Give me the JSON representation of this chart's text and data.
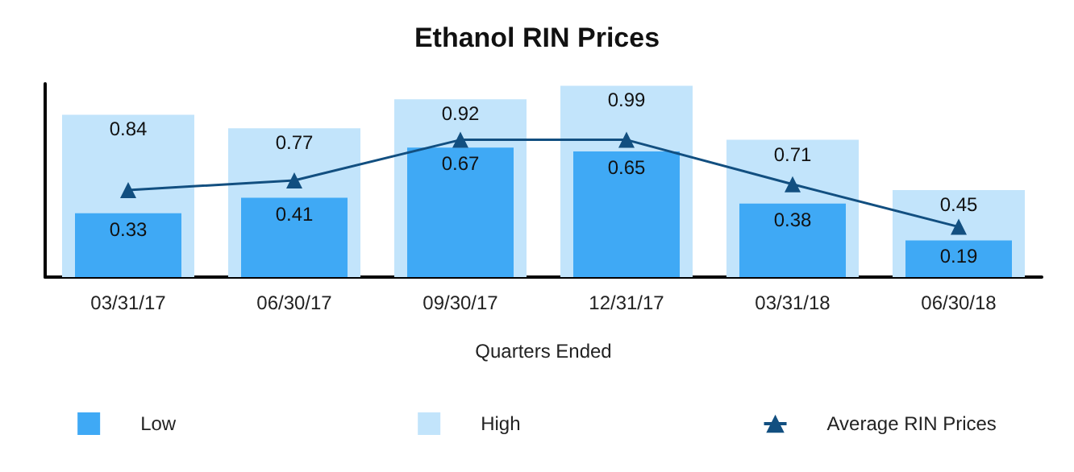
{
  "chart_data": {
    "type": "bar",
    "title": "Ethanol RIN Prices",
    "xlabel": "Quarters Ended",
    "categories": [
      "03/31/17",
      "06/30/17",
      "09/30/17",
      "12/31/17",
      "03/31/18",
      "06/30/18"
    ],
    "series": [
      {
        "name": "Low",
        "color": "#3fa9f5",
        "values": [
          0.33,
          0.41,
          0.67,
          0.65,
          0.38,
          0.19
        ],
        "value_labels": [
          "0.33",
          "0.41",
          "0.67",
          "0.65",
          "0.38",
          "0.19"
        ]
      },
      {
        "name": "High",
        "color": "#c2e4fb",
        "values": [
          0.84,
          0.77,
          0.92,
          0.99,
          0.71,
          0.45
        ],
        "value_labels": [
          "0.84",
          "0.77",
          "0.92",
          "0.99",
          "0.71",
          "0.45"
        ]
      },
      {
        "name": "Average RIN Prices",
        "type": "line",
        "color": "#124f80",
        "values": [
          0.45,
          0.5,
          0.71,
          0.71,
          0.48,
          0.26
        ]
      }
    ],
    "marker": "triangle",
    "grid": false,
    "legend": "bottom",
    "tick_labels": "x"
  }
}
